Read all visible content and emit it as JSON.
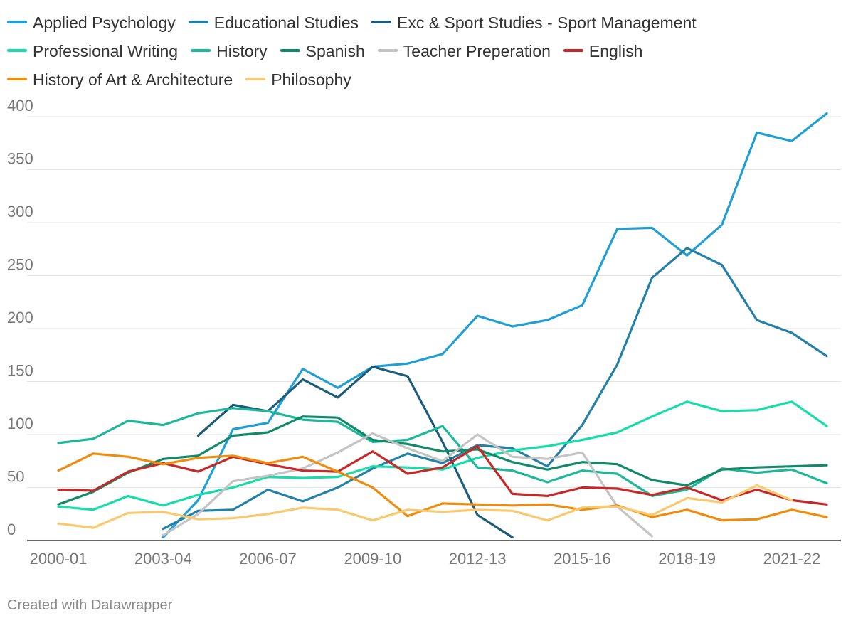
{
  "chart_data": {
    "type": "line",
    "categories": [
      "2000-01",
      "2001-02",
      "2002-03",
      "2003-04",
      "2004-05",
      "2005-06",
      "2006-07",
      "2007-08",
      "2008-09",
      "2009-10",
      "2010-11",
      "2011-12",
      "2012-13",
      "2013-14",
      "2014-15",
      "2015-16",
      "2016-17",
      "2017-18",
      "2018-19",
      "2019-20",
      "2020-21",
      "2021-22",
      "2022-23"
    ],
    "x_tick_labels": [
      "2000-01",
      "2003-04",
      "2006-07",
      "2009-10",
      "2012-13",
      "2015-16",
      "2018-19",
      "2021-22"
    ],
    "y_ticks": [
      0,
      50,
      100,
      150,
      200,
      250,
      300,
      350,
      400
    ],
    "ylim": [
      0,
      400
    ],
    "title": "",
    "xlabel": "",
    "ylabel": "",
    "grid": true,
    "legend_position": "top",
    "series": [
      {
        "name": "Applied Psychology",
        "color": "#1f9fd3",
        "values": [
          null,
          null,
          null,
          3,
          38,
          105,
          111,
          162,
          144,
          164,
          167,
          176,
          212,
          202,
          208,
          222,
          294,
          295,
          269,
          298,
          385,
          377,
          403
        ]
      },
      {
        "name": "Educational Studies",
        "color": "#2381a8",
        "values": [
          null,
          null,
          null,
          11,
          28,
          29,
          48,
          37,
          50,
          68,
          82,
          73,
          90,
          87,
          70,
          109,
          166,
          248,
          276,
          260,
          208,
          196,
          174
        ]
      },
      {
        "name": "Exc & Sport Studies - Sport Management",
        "color": "#1d5c79",
        "values": [
          null,
          null,
          null,
          null,
          99,
          128,
          122,
          152,
          135,
          164,
          155,
          93,
          24,
          3,
          null,
          null,
          null,
          null,
          null,
          null,
          null,
          null,
          null
        ]
      },
      {
        "name": "Professional Writing",
        "color": "#17dda8",
        "values": [
          32,
          29,
          42,
          33,
          43,
          50,
          60,
          59,
          60,
          70,
          69,
          67,
          78,
          85,
          89,
          95,
          102,
          117,
          131,
          122,
          123,
          131,
          108
        ]
      },
      {
        "name": "History",
        "color": "#1db899",
        "values": [
          92,
          96,
          113,
          109,
          120,
          125,
          122,
          114,
          112,
          93,
          95,
          108,
          69,
          66,
          55,
          66,
          63,
          42,
          48,
          68,
          64,
          67,
          54
        ]
      },
      {
        "name": "Spanish",
        "color": "#128a6a",
        "values": [
          34,
          46,
          64,
          77,
          80,
          99,
          102,
          117,
          116,
          95,
          91,
          84,
          86,
          74,
          67,
          74,
          72,
          57,
          52,
          67,
          69,
          70,
          71
        ]
      },
      {
        "name": "Teacher Preperation",
        "color": "#c4c4c4",
        "values": [
          null,
          null,
          null,
          5,
          25,
          56,
          61,
          68,
          83,
          101,
          87,
          75,
          100,
          79,
          77,
          83,
          32,
          4,
          null,
          null,
          null,
          null,
          null
        ]
      },
      {
        "name": "English",
        "color": "#c72828",
        "values": [
          48,
          47,
          65,
          73,
          65,
          79,
          72,
          66,
          65,
          84,
          63,
          69,
          89,
          44,
          42,
          50,
          49,
          43,
          50,
          38,
          48,
          38,
          34
        ]
      },
      {
        "name": "History of Art & Architecture",
        "color": "#ef8c0d",
        "values": [
          66,
          82,
          79,
          72,
          78,
          80,
          73,
          79,
          65,
          50,
          23,
          35,
          34,
          33,
          34,
          29,
          33,
          22,
          29,
          19,
          20,
          29,
          22
        ]
      },
      {
        "name": "Philosophy",
        "color": "#f9c96f",
        "values": [
          16,
          12,
          26,
          27,
          20,
          21,
          25,
          31,
          29,
          19,
          29,
          27,
          29,
          28,
          19,
          31,
          32,
          24,
          40,
          36,
          52,
          38,
          null
        ]
      }
    ]
  },
  "credit": "Created with Datawrapper"
}
